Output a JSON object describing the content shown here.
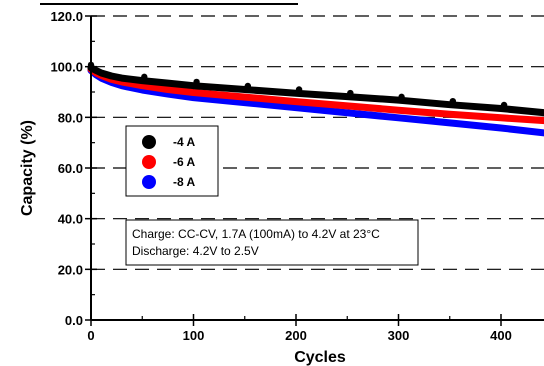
{
  "chart_data": {
    "type": "line",
    "title": "",
    "xlabel": "Cycles",
    "ylabel": "Capacity (%)",
    "xlim": [
      0,
      450
    ],
    "ylim": [
      0,
      120
    ],
    "x_ticks": [
      0,
      100,
      200,
      300,
      400
    ],
    "x_tick_labels": [
      "0",
      "100",
      "200",
      "300",
      "400"
    ],
    "y_ticks": [
      0,
      20,
      40,
      60,
      80,
      100,
      120
    ],
    "y_tick_labels": [
      "0.0",
      "20.0",
      "40.0",
      "60.0",
      "80.0",
      "100.0",
      "120.0"
    ],
    "grid": "horizontal dashed",
    "legend_position": "center-left",
    "series": [
      {
        "name": "-4 A",
        "color": "#000000",
        "x": [
          0,
          5,
          10,
          20,
          30,
          50,
          75,
          100,
          150,
          200,
          250,
          300,
          350,
          400,
          450
        ],
        "y": [
          99.5,
          98.5,
          97.5,
          96.3,
          95.5,
          94.5,
          93.5,
          92.5,
          91.0,
          89.5,
          88.2,
          86.8,
          85.0,
          83.5,
          81.5
        ],
        "markers_x": [
          0,
          52,
          103,
          153,
          203,
          253,
          303,
          353,
          403
        ],
        "markers_y": [
          99.5,
          94.8,
          92.8,
          91.2,
          89.8,
          88.4,
          86.9,
          85.2,
          83.7
        ]
      },
      {
        "name": "-6 A",
        "color": "#ff0000",
        "x": [
          0,
          5,
          10,
          20,
          30,
          50,
          75,
          100,
          150,
          200,
          250,
          300,
          350,
          400,
          450
        ],
        "y": [
          99.0,
          97.5,
          96.5,
          95.0,
          94.0,
          92.5,
          91.0,
          89.8,
          88.0,
          86.2,
          84.5,
          82.8,
          81.2,
          79.8,
          78.5
        ]
      },
      {
        "name": "-8 A",
        "color": "#0000ff",
        "x": [
          0,
          5,
          10,
          20,
          30,
          50,
          75,
          100,
          150,
          200,
          250,
          300,
          350,
          400,
          450
        ],
        "y": [
          98.5,
          96.8,
          95.5,
          93.8,
          92.5,
          90.8,
          89.2,
          87.8,
          85.8,
          83.8,
          81.8,
          79.8,
          77.8,
          75.8,
          73.5
        ]
      }
    ],
    "annotation": [
      "Charge: CC-CV, 1.7A (100mA) to 4.2V at 23°C",
      "Discharge: 4.2V to 2.5V"
    ]
  }
}
